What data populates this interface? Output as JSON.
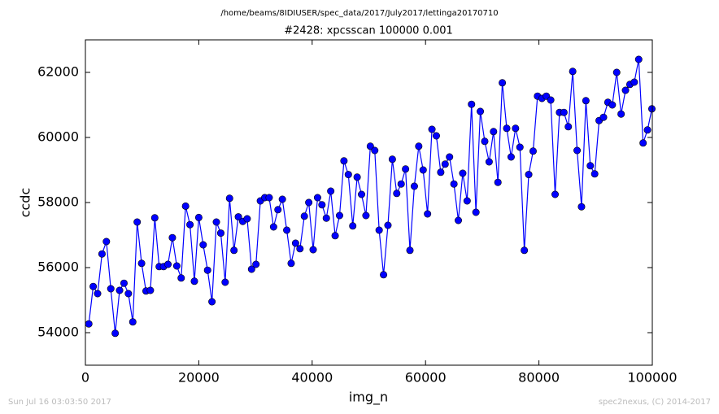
{
  "chart_data": {
    "type": "line",
    "suptitle": "/home/beams/8IDIUSER/spec_data/2017/July2017/lettinga20170710",
    "title": "#2428: xpcsscan 100000 0.001",
    "xlabel": "img_n",
    "ylabel": "ccdc",
    "color": "#0000ff",
    "marker": "o",
    "xlim": [
      0,
      100000
    ],
    "ylim": [
      53000,
      63000
    ],
    "xticks": [
      0,
      20000,
      40000,
      60000,
      80000,
      100000
    ],
    "yticks": [
      54000,
      56000,
      58000,
      60000,
      62000
    ],
    "grid": false,
    "x": [
      600,
      1376,
      2152,
      2928,
      3704,
      4480,
      5256,
      6032,
      6808,
      7584,
      8360,
      9136,
      9912,
      10688,
      11464,
      12240,
      13016,
      13792,
      14568,
      15344,
      16120,
      16896,
      17672,
      18448,
      19224,
      20000,
      20776,
      21552,
      22328,
      23104,
      23880,
      24656,
      25432,
      26208,
      26984,
      27760,
      28536,
      29312,
      30088,
      30864,
      31640,
      32416,
      33192,
      33968,
      34744,
      35520,
      36296,
      37072,
      37848,
      38624,
      39400,
      40176,
      40952,
      41728,
      42504,
      43280,
      44056,
      44832,
      45608,
      46384,
      47160,
      47936,
      48712,
      49488,
      50264,
      51040,
      51816,
      52592,
      53368,
      54144,
      54920,
      55696,
      56472,
      57248,
      58024,
      58800,
      59576,
      60352,
      61128,
      61904,
      62680,
      63456,
      64232,
      65008,
      65784,
      66560,
      67336,
      68112,
      68888,
      69664,
      70440,
      71216,
      71992,
      72768,
      73544,
      74320,
      75096,
      75872,
      76648,
      77424,
      78200,
      78976,
      79752,
      80528,
      81304,
      82080,
      82856,
      83632,
      84408,
      85184,
      85960,
      86736,
      87512,
      88288,
      89064,
      89840,
      90616,
      91392,
      92168,
      92944,
      93720,
      94496,
      95272,
      96048,
      96824,
      97600,
      98376,
      99152,
      99928
    ],
    "values": [
      54270,
      55420,
      55200,
      56420,
      56800,
      55350,
      53980,
      55300,
      55520,
      55200,
      54330,
      57400,
      56130,
      55280,
      55300,
      57530,
      56030,
      56030,
      56100,
      56920,
      56050,
      55680,
      57890,
      57320,
      55580,
      57540,
      56700,
      55920,
      54950,
      57400,
      57060,
      55550,
      58130,
      56530,
      57560,
      57420,
      57500,
      55950,
      56100,
      58050,
      58150,
      58150,
      57250,
      57780,
      58100,
      57150,
      56130,
      56750,
      56580,
      57580,
      58000,
      56550,
      58150,
      57930,
      57520,
      58350,
      56980,
      57600,
      59280,
      58860,
      57280,
      58780,
      58250,
      57600,
      59730,
      59600,
      57150,
      55780,
      57300,
      59330,
      58280,
      58570,
      59030,
      56530,
      58500,
      59730,
      59000,
      57650,
      60250,
      60050,
      58930,
      59180,
      59400,
      58570,
      57450,
      58900,
      58050,
      61020,
      57700,
      60800,
      59880,
      59250,
      60180,
      58620,
      61680,
      60280,
      59400,
      60280,
      59700,
      56530,
      58860,
      59580,
      61270,
      61200,
      61270,
      61150,
      58250,
      60770,
      60770,
      60330,
      62030,
      59600,
      57870,
      61130,
      59130,
      58880,
      60520,
      60620,
      61080,
      61000,
      62000,
      60720,
      61450,
      61630,
      61700,
      62400,
      59830,
      60230,
      60880
    ]
  },
  "footer": {
    "left": "Sun Jul 16 03:03:50 2017",
    "right": "spec2nexus, (C) 2014-2017"
  }
}
